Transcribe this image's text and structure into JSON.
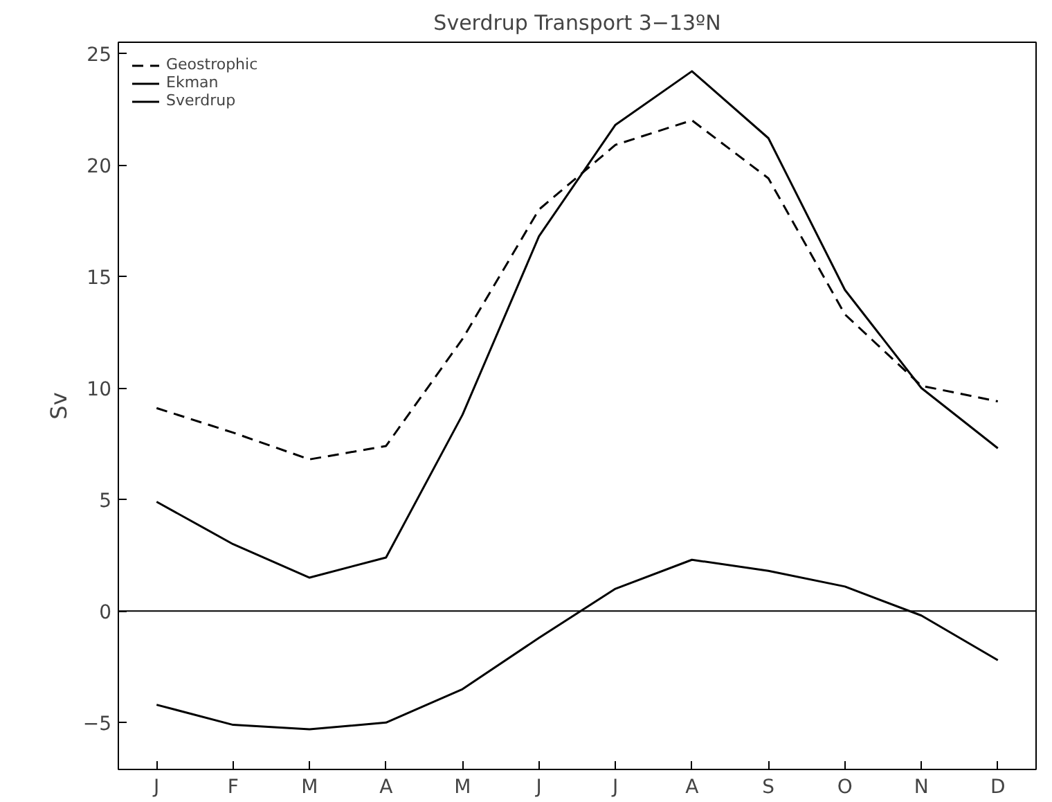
{
  "chart_data": {
    "type": "line",
    "title": "Sverdrup Transport 3−13ºN",
    "ylabel": "Sv",
    "categories": [
      "J",
      "F",
      "M",
      "A",
      "M",
      "J",
      "J",
      "A",
      "S",
      "O",
      "N",
      "D"
    ],
    "series": [
      {
        "name": "Geostrophic",
        "color": "#000000",
        "line_style": "dashed",
        "values": [
          9.1,
          8.0,
          6.8,
          7.4,
          12.2,
          18.0,
          20.9,
          22.0,
          19.4,
          13.3,
          10.1,
          9.4
        ]
      },
      {
        "name": "Ekman",
        "color": "#000000",
        "line_style": "solid",
        "values": [
          -4.2,
          -5.1,
          -5.3,
          -5.0,
          -3.5,
          -1.2,
          1.0,
          2.3,
          1.8,
          1.1,
          -0.2,
          -2.2
        ]
      },
      {
        "name": "Sverdrup",
        "color": "#000000",
        "line_style": "solid",
        "values": [
          4.9,
          3.0,
          1.5,
          2.4,
          8.8,
          16.8,
          21.8,
          24.2,
          21.2,
          14.4,
          10.0,
          7.3
        ]
      }
    ],
    "ylim": [
      -7.1,
      25.5
    ],
    "yticks": [
      -5,
      0,
      5,
      10,
      15,
      20,
      25
    ],
    "ref_lines": [
      {
        "axis": "y",
        "value": 0,
        "color": "#000000"
      }
    ],
    "grid": false,
    "legend": "top left",
    "marker": "none"
  }
}
